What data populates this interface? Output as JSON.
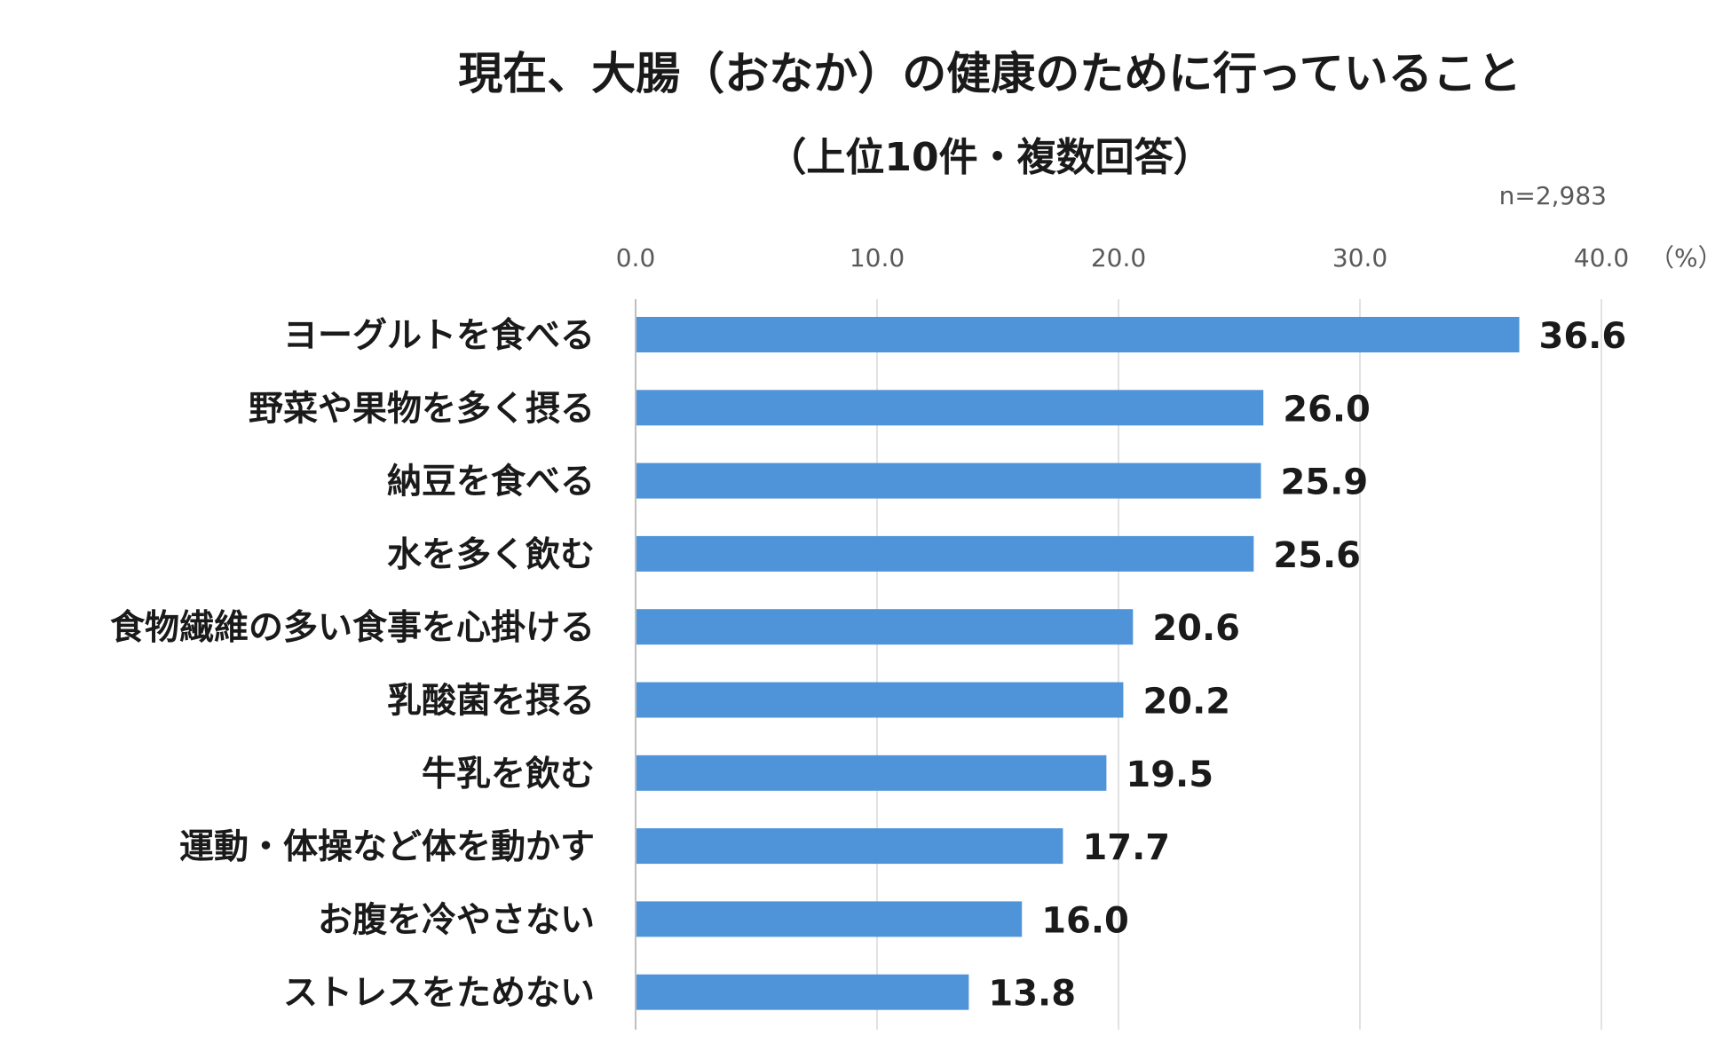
{
  "chart_data": {
    "type": "bar",
    "orientation": "horizontal",
    "title": "現在、大腸（おなか）の健康のために行っていること",
    "subtitle": "（上位10件・複数回答）",
    "sample_note": "n=2,983",
    "xlabel": "",
    "ylabel": "",
    "unit_label": "（%）",
    "xlim": [
      0,
      40
    ],
    "x_ticks": [
      "0.0",
      "10.0",
      "20.0",
      "30.0",
      "40.0"
    ],
    "grid": "vertical",
    "legend": "none",
    "bar_color": "#4f94d8",
    "categories": [
      "ヨーグルトを食べる",
      "野菜や果物を多く摂る",
      "納豆を食べる",
      "水を多く飲む",
      "食物繊維の多い食事を心掛ける",
      "乳酸菌を摂る",
      "牛乳を飲む",
      "運動・体操など体を動かす",
      "お腹を冷やさない",
      "ストレスをためない"
    ],
    "values": [
      36.6,
      26.0,
      25.9,
      25.6,
      20.6,
      20.2,
      19.5,
      17.7,
      16.0,
      13.8
    ],
    "value_labels": [
      "36.6",
      "26.0",
      "25.9",
      "25.6",
      "20.6",
      "20.2",
      "19.5",
      "17.7",
      "16.0",
      "13.8"
    ]
  }
}
